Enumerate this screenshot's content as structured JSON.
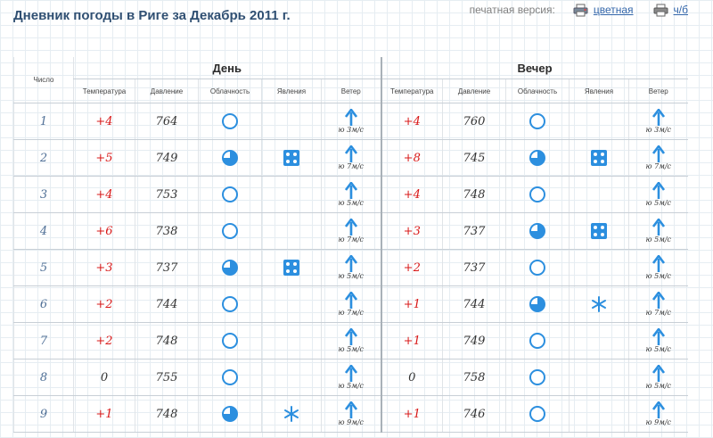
{
  "page": {
    "title": "Дневник погоды в Риге за Декабрь 2011 г.",
    "print_label": "печатная версия:",
    "print_color": "цветная",
    "print_bw": "ч/б"
  },
  "table": {
    "col_num": "Число",
    "group_day": "День",
    "group_evening": "Вечер",
    "columns": [
      "Температура",
      "Давление",
      "Облачность",
      "Явления",
      "Ветер"
    ]
  },
  "colors": {
    "temp": "#d81818",
    "icon": "#2c8fdf",
    "title": "#2f4f72"
  },
  "rows": [
    {
      "num": "1",
      "day": {
        "temp": "+4",
        "pres": "764",
        "cloud": "clear-icon",
        "phen": "",
        "wind": "ю 3м/с"
      },
      "eve": {
        "temp": "+4",
        "pres": "760",
        "cloud": "clear-icon",
        "phen": "",
        "wind": "ю 3м/с"
      }
    },
    {
      "num": "2",
      "day": {
        "temp": "+5",
        "pres": "749",
        "cloud": "partly-cloudy-icon",
        "phen": "dice-icon",
        "wind": "ю 7м/с"
      },
      "eve": {
        "temp": "+8",
        "pres": "745",
        "cloud": "cloudy-icon",
        "phen": "dice-icon",
        "wind": "ю 7м/с"
      }
    },
    {
      "num": "3",
      "day": {
        "temp": "+4",
        "pres": "753",
        "cloud": "clear-icon",
        "phen": "",
        "wind": "ю 5м/с"
      },
      "eve": {
        "temp": "+4",
        "pres": "748",
        "cloud": "clear-icon",
        "phen": "",
        "wind": "ю 5м/с"
      }
    },
    {
      "num": "4",
      "day": {
        "temp": "+6",
        "pres": "738",
        "cloud": "clear-icon",
        "phen": "",
        "wind": "ю 7м/с"
      },
      "eve": {
        "temp": "+3",
        "pres": "737",
        "cloud": "cloudy-icon",
        "phen": "dice-icon",
        "wind": "ю 5м/с"
      }
    },
    {
      "num": "5",
      "day": {
        "temp": "+3",
        "pres": "737",
        "cloud": "partly-cloudy-icon",
        "phen": "dice-icon",
        "wind": "ю 5м/с"
      },
      "eve": {
        "temp": "+2",
        "pres": "737",
        "cloud": "clear-icon",
        "phen": "",
        "wind": "ю 5м/с"
      }
    },
    {
      "num": "6",
      "day": {
        "temp": "+2",
        "pres": "744",
        "cloud": "clear-icon",
        "phen": "",
        "wind": "ю 7м/с"
      },
      "eve": {
        "temp": "+1",
        "pres": "744",
        "cloud": "cloudy-icon",
        "phen": "snow-icon",
        "wind": "ю 7м/с"
      }
    },
    {
      "num": "7",
      "day": {
        "temp": "+2",
        "pres": "748",
        "cloud": "clear-icon",
        "phen": "",
        "wind": "ю 5м/с"
      },
      "eve": {
        "temp": "+1",
        "pres": "749",
        "cloud": "clear-icon",
        "phen": "",
        "wind": "ю 5м/с"
      }
    },
    {
      "num": "8",
      "day": {
        "temp": "0",
        "pres": "755",
        "cloud": "clear-icon",
        "phen": "",
        "wind": "ю 5м/с"
      },
      "eve": {
        "temp": "0",
        "pres": "758",
        "cloud": "clear-icon",
        "phen": "",
        "wind": "ю 5м/с"
      }
    },
    {
      "num": "9",
      "day": {
        "temp": "+1",
        "pres": "748",
        "cloud": "partly-cloudy-icon",
        "phen": "snow-icon",
        "wind": "ю 9м/с"
      },
      "eve": {
        "temp": "+1",
        "pres": "746",
        "cloud": "clear-icon",
        "phen": "",
        "wind": "ю 9м/с"
      }
    }
  ]
}
